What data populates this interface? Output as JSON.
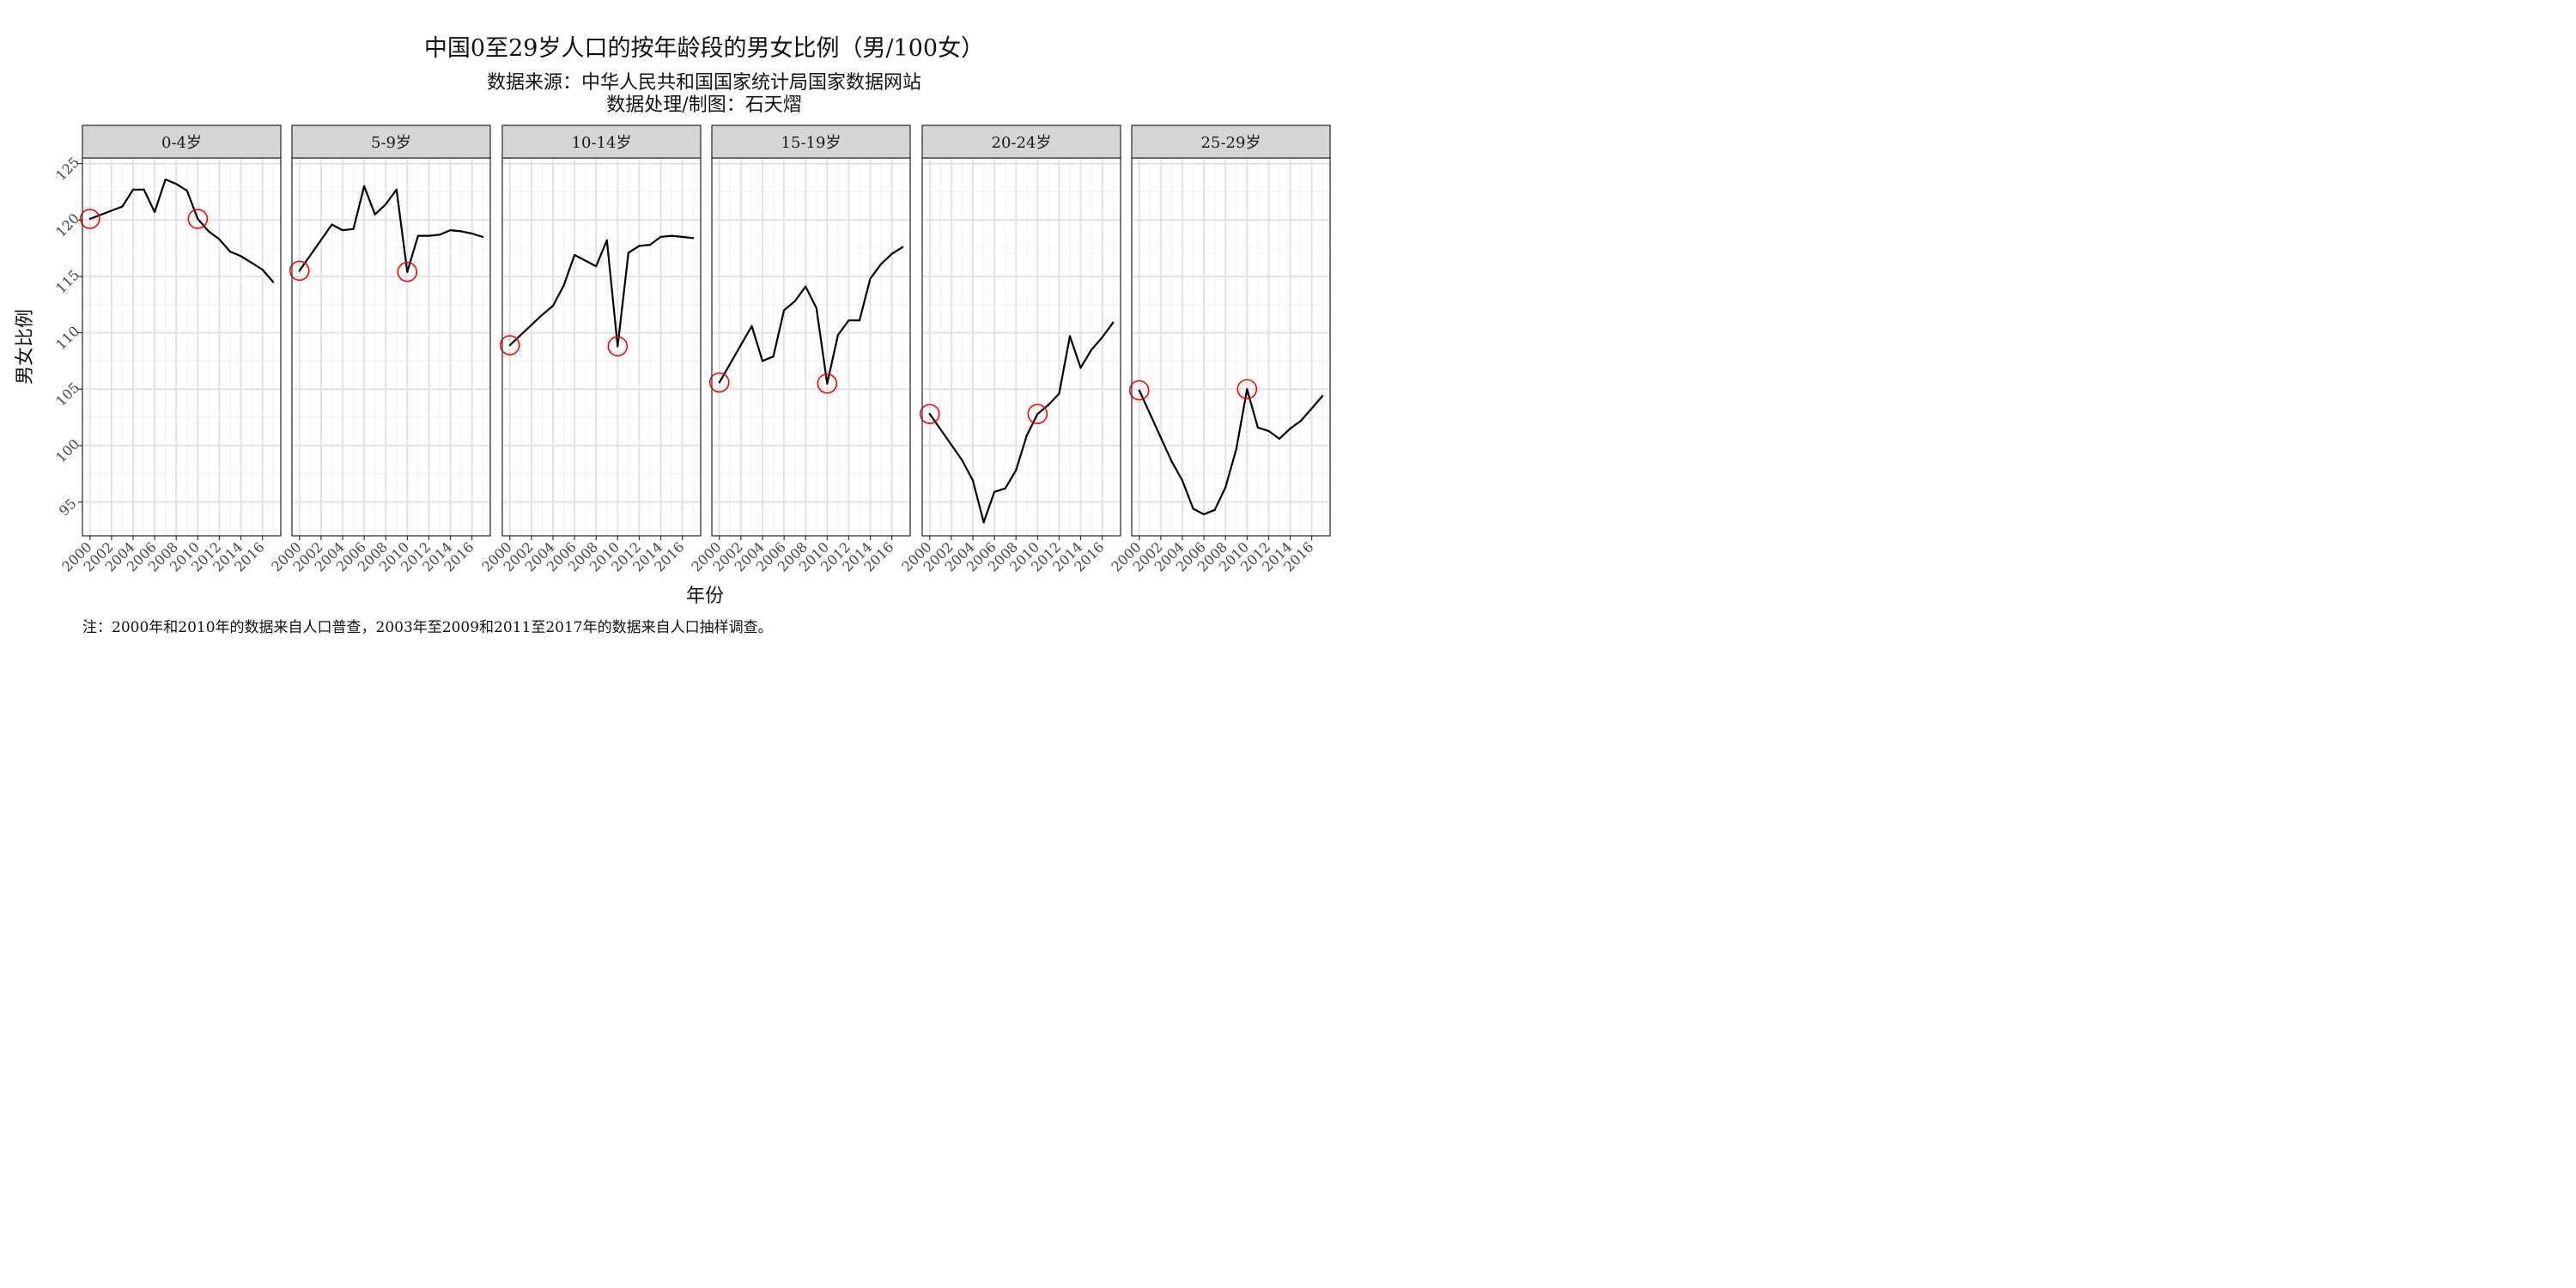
{
  "chart_data": {
    "type": "line",
    "title": "中国0至29岁人口的按年龄段的男女比例（男/100女）",
    "subtitle": [
      "数据来源：中华人民共和国国家统计局国家数据网站",
      "数据处理/制图：石天熠"
    ],
    "caption": "注：2000年和2010年的数据来自人口普查，2003年至2009和2011至2017年的数据来自人口抽样调查。",
    "xlabel": "年份",
    "ylabel": "男女比例",
    "xlim": [
      1999.3,
      2017.7
    ],
    "ylim": [
      92,
      125.5
    ],
    "x_ticks": [
      2000,
      2002,
      2004,
      2006,
      2008,
      2010,
      2012,
      2014,
      2016
    ],
    "x_tick_labels": [
      "2000",
      "2002",
      "2004",
      "2006",
      "2008",
      "2010",
      "2012",
      "2014",
      "2016"
    ],
    "y_ticks": [
      95,
      100,
      105,
      110,
      115,
      120,
      125
    ],
    "y_tick_labels": [
      "95",
      "100",
      "105",
      "110",
      "115",
      "120",
      "125"
    ],
    "x": [
      2000,
      2003,
      2004,
      2005,
      2006,
      2007,
      2008,
      2009,
      2010,
      2011,
      2012,
      2013,
      2014,
      2015,
      2016,
      2017
    ],
    "census_years": [
      2000,
      2010
    ],
    "line_color": "#000000",
    "marker_color": "#ff0000",
    "grid": true,
    "panels": [
      {
        "name": "0-4岁",
        "values": [
          120.1,
          121.2,
          122.7,
          122.7,
          120.7,
          123.6,
          123.2,
          122.6,
          120.1,
          119.0,
          118.3,
          117.2,
          116.8,
          116.2,
          115.6,
          114.5
        ]
      },
      {
        "name": "5-9岁",
        "values": [
          115.5,
          119.6,
          119.1,
          119.2,
          123.0,
          120.5,
          121.4,
          122.7,
          115.4,
          118.6,
          118.6,
          118.7,
          119.1,
          119.0,
          118.8,
          118.5
        ]
      },
      {
        "name": "10-14岁",
        "values": [
          108.9,
          111.6,
          112.4,
          114.2,
          116.9,
          116.4,
          115.9,
          118.2,
          108.8,
          117.1,
          117.7,
          117.8,
          118.5,
          118.6,
          118.5,
          118.4
        ]
      },
      {
        "name": "15-19岁",
        "values": [
          105.6,
          110.6,
          107.5,
          107.9,
          112.0,
          112.8,
          114.1,
          112.2,
          105.5,
          109.8,
          111.1,
          111.1,
          114.8,
          116.1,
          117.0,
          117.6
        ]
      },
      {
        "name": "20-24岁",
        "values": [
          102.8,
          98.7,
          96.9,
          93.2,
          95.9,
          96.2,
          97.8,
          100.9,
          102.8,
          103.6,
          104.6,
          109.7,
          106.9,
          108.5,
          109.6,
          110.9
        ]
      },
      {
        "name": "25-29岁",
        "values": [
          104.9,
          98.6,
          96.9,
          94.4,
          93.9,
          94.3,
          96.3,
          99.7,
          105.0,
          101.6,
          101.3,
          100.6,
          101.5,
          102.2,
          103.3,
          104.4
        ]
      }
    ]
  }
}
